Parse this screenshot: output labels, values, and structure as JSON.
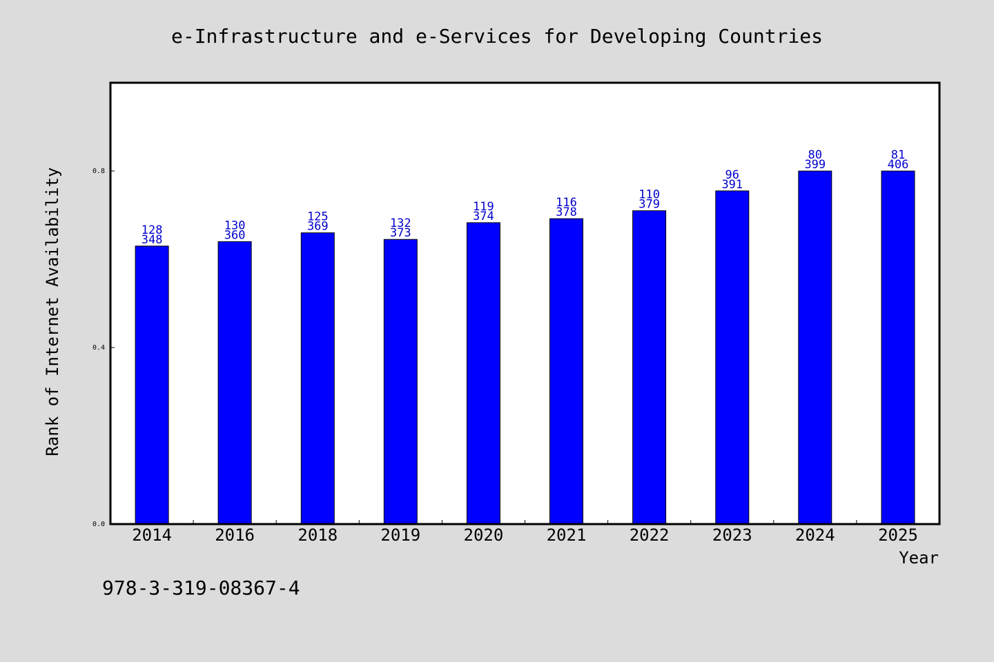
{
  "chart_data": {
    "type": "bar",
    "title": "e-Infrastructure and e-Services for Developing Countries",
    "xlabel": "Year",
    "ylabel": "Rank of Internet Availability",
    "footer_text": "978-3-319-08367-4",
    "categories": [
      "2014",
      "2016",
      "2018",
      "2019",
      "2020",
      "2021",
      "2022",
      "2023",
      "2024",
      "2025"
    ],
    "series": [
      {
        "values": [
          0.63,
          0.64,
          0.66,
          0.645,
          0.683,
          0.692,
          0.71,
          0.755,
          0.8,
          0.8
        ],
        "color": "#0000ff"
      }
    ],
    "bar_labels_top": [
      "128",
      "130",
      "125",
      "132",
      "119",
      "116",
      "110",
      "96",
      "80",
      "81"
    ],
    "bar_labels_bottom": [
      "348",
      "360",
      "369",
      "373",
      "374",
      "378",
      "379",
      "391",
      "399",
      "406"
    ],
    "yticks": [
      "0.0",
      "0.4",
      "0.8"
    ],
    "ylim": [
      0,
      1.0
    ],
    "grid": false,
    "legend": "none",
    "colors": {
      "background": "#dcdcdc",
      "plot_background": "#ffffff",
      "bar": "#0000ff",
      "bar_label": "#0000cd",
      "text": "#000000"
    }
  }
}
